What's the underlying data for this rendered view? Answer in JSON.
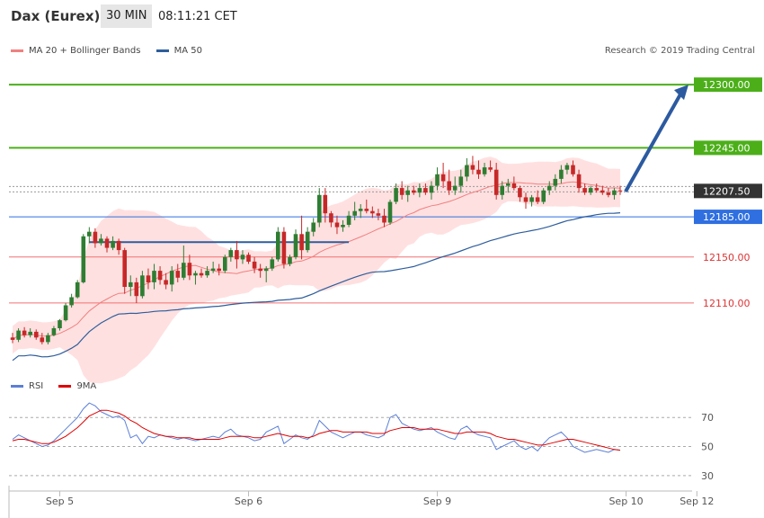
{
  "header": {
    "instrument": "Dax (Eurex)",
    "timeframe": "30 MIN",
    "clock": "08:11:21 CET"
  },
  "legend": {
    "ma20_label": "MA 20 + Bollinger Bands",
    "ma50_label": "MA 50",
    "rsi_label": "RSI",
    "rsi_ma_label": "9MA",
    "credit": "Research © 2019 Trading Central"
  },
  "colors": {
    "ma20": "#f08080",
    "ma50": "#2e5d9c",
    "bollinger_fill": "#ffe0e0",
    "candle_up": "#2e7d32",
    "candle_down": "#c62828",
    "target_green": "#4caf1a",
    "resistance_blue": "#2f6fe0",
    "support_red": "#f07070",
    "current_price": "#333333",
    "arrow": "#2c5aa0",
    "rsi": "#5b7fd6",
    "rsi_ma": "#e00000"
  },
  "chart_data": [
    {
      "type": "candlestick",
      "title": "Dax (Eurex) 30 MIN",
      "ylim": [
        12045,
        12322
      ],
      "x_ticks": [
        "Sep 5",
        "Sep 6",
        "Sep 9",
        "Sep 10",
        "Sep 12"
      ],
      "x_tick_index": [
        8,
        40,
        72,
        104,
        116
      ],
      "levels": [
        {
          "label": "12300.00",
          "value": 12300,
          "kind": "target"
        },
        {
          "label": "12245.00",
          "value": 12245,
          "kind": "target"
        },
        {
          "label": "12207.50",
          "value": 12207.5,
          "kind": "current"
        },
        {
          "label": "12185.00",
          "value": 12185,
          "kind": "resistance"
        },
        {
          "label": "12150.00",
          "value": 12150,
          "kind": "support"
        },
        {
          "label": "12110.00",
          "value": 12110,
          "kind": "support"
        }
      ],
      "horizontal_line": {
        "value": 12163,
        "from_index": 13,
        "to_index": 57
      },
      "projection_arrow": {
        "from_value": 12207,
        "to_value": 12300
      },
      "candles": [
        [
          12080,
          12084,
          12075,
          12078
        ],
        [
          12078,
          12088,
          12076,
          12086
        ],
        [
          12086,
          12089,
          12080,
          12082
        ],
        [
          12082,
          12088,
          12080,
          12085
        ],
        [
          12085,
          12087,
          12078,
          12080
        ],
        [
          12080,
          12084,
          12074,
          12076
        ],
        [
          12076,
          12084,
          12074,
          12082
        ],
        [
          12082,
          12090,
          12081,
          12088
        ],
        [
          12088,
          12096,
          12086,
          12095
        ],
        [
          12095,
          12110,
          12094,
          12108
        ],
        [
          12108,
          12118,
          12106,
          12115
        ],
        [
          12115,
          12130,
          12114,
          12128
        ],
        [
          12128,
          12170,
          12127,
          12168
        ],
        [
          12168,
          12176,
          12162,
          12172
        ],
        [
          12172,
          12175,
          12158,
          12162
        ],
        [
          12162,
          12170,
          12160,
          12166
        ],
        [
          12166,
          12168,
          12154,
          12158
        ],
        [
          12158,
          12168,
          12156,
          12164
        ],
        [
          12164,
          12166,
          12152,
          12156
        ],
        [
          12156,
          12158,
          12118,
          12124
        ],
        [
          12124,
          12134,
          12116,
          12128
        ],
        [
          12128,
          12132,
          12110,
          12116
        ],
        [
          12116,
          12138,
          12114,
          12134
        ],
        [
          12134,
          12140,
          12122,
          12128
        ],
        [
          12128,
          12144,
          12122,
          12138
        ],
        [
          12138,
          12142,
          12126,
          12130
        ],
        [
          12130,
          12136,
          12122,
          12126
        ],
        [
          12126,
          12142,
          12120,
          12138
        ],
        [
          12138,
          12144,
          12128,
          12132
        ],
        [
          12132,
          12160,
          12130,
          12145
        ],
        [
          12145,
          12152,
          12130,
          12134
        ],
        [
          12134,
          12138,
          12126,
          12136
        ],
        [
          12136,
          12140,
          12132,
          12134
        ],
        [
          12134,
          12142,
          12132,
          12138
        ],
        [
          12138,
          12146,
          12136,
          12140
        ],
        [
          12140,
          12144,
          12134,
          12138
        ],
        [
          12138,
          12152,
          12136,
          12150
        ],
        [
          12150,
          12158,
          12146,
          12156
        ],
        [
          12156,
          12164,
          12140,
          12148
        ],
        [
          12148,
          12156,
          12144,
          12152
        ],
        [
          12152,
          12154,
          12144,
          12146
        ],
        [
          12146,
          12150,
          12136,
          12140
        ],
        [
          12140,
          12144,
          12132,
          12138
        ],
        [
          12138,
          12142,
          12128,
          12140
        ],
        [
          12140,
          12150,
          12138,
          12148
        ],
        [
          12148,
          12176,
          12146,
          12172
        ],
        [
          12172,
          12176,
          12140,
          12144
        ],
        [
          12144,
          12152,
          12142,
          12150
        ],
        [
          12150,
          12174,
          12148,
          12170
        ],
        [
          12170,
          12186,
          12148,
          12156
        ],
        [
          12156,
          12176,
          12154,
          12172
        ],
        [
          12172,
          12184,
          12168,
          12180
        ],
        [
          12180,
          12210,
          12176,
          12204
        ],
        [
          12204,
          12210,
          12180,
          12188
        ],
        [
          12188,
          12190,
          12176,
          12180
        ],
        [
          12180,
          12186,
          12170,
          12176
        ],
        [
          12176,
          12182,
          12172,
          12178
        ],
        [
          12178,
          12190,
          12176,
          12186
        ],
        [
          12186,
          12198,
          12182,
          12190
        ],
        [
          12190,
          12196,
          12184,
          12192
        ],
        [
          12192,
          12200,
          12188,
          12190
        ],
        [
          12190,
          12194,
          12184,
          12188
        ],
        [
          12188,
          12192,
          12182,
          12186
        ],
        [
          12186,
          12192,
          12176,
          12180
        ],
        [
          12180,
          12200,
          12178,
          12198
        ],
        [
          12198,
          12214,
          12196,
          12210
        ],
        [
          12210,
          12216,
          12200,
          12204
        ],
        [
          12204,
          12212,
          12198,
          12208
        ],
        [
          12208,
          12212,
          12204,
          12206
        ],
        [
          12206,
          12214,
          12202,
          12210
        ],
        [
          12210,
          12214,
          12204,
          12206
        ],
        [
          12206,
          12216,
          12200,
          12212
        ],
        [
          12212,
          12228,
          12208,
          12222
        ],
        [
          12222,
          12232,
          12210,
          12216
        ],
        [
          12216,
          12226,
          12204,
          12208
        ],
        [
          12208,
          12220,
          12204,
          12212
        ],
        [
          12212,
          12226,
          12206,
          12220
        ],
        [
          12220,
          12236,
          12216,
          12230
        ],
        [
          12230,
          12238,
          12222,
          12226
        ],
        [
          12226,
          12234,
          12218,
          12222
        ],
        [
          12222,
          12232,
          12220,
          12228
        ],
        [
          12228,
          12234,
          12224,
          12226
        ],
        [
          12226,
          12232,
          12200,
          12204
        ],
        [
          12204,
          12216,
          12200,
          12212
        ],
        [
          12212,
          12218,
          12206,
          12214
        ],
        [
          12214,
          12220,
          12208,
          12210
        ],
        [
          12210,
          12212,
          12198,
          12202
        ],
        [
          12202,
          12206,
          12192,
          12198
        ],
        [
          12198,
          12204,
          12194,
          12202
        ],
        [
          12202,
          12208,
          12196,
          12198
        ],
        [
          12198,
          12210,
          12196,
          12208
        ],
        [
          12208,
          12216,
          12204,
          12212
        ],
        [
          12212,
          12222,
          12208,
          12218
        ],
        [
          12218,
          12230,
          12214,
          12226
        ],
        [
          12226,
          12232,
          12222,
          12230
        ],
        [
          12230,
          12234,
          12220,
          12222
        ],
        [
          12222,
          12226,
          12206,
          12210
        ],
        [
          12210,
          12214,
          12204,
          12206
        ],
        [
          12206,
          12212,
          12204,
          12210
        ],
        [
          12210,
          12214,
          12206,
          12208
        ],
        [
          12208,
          12212,
          12204,
          12206
        ],
        [
          12206,
          12210,
          12202,
          12204
        ],
        [
          12204,
          12210,
          12200,
          12208
        ],
        [
          12208,
          12212,
          12204,
          12207.5
        ]
      ],
      "rsi_panel": {
        "ylim": [
          20,
          85
        ],
        "y_ticks": [
          70,
          50,
          30
        ],
        "rsi": [
          55,
          58,
          56,
          54,
          52,
          50,
          51,
          54,
          58,
          62,
          66,
          70,
          76,
          80,
          78,
          74,
          72,
          70,
          71,
          68,
          56,
          58,
          52,
          57,
          56,
          58,
          57,
          56,
          55,
          56,
          55,
          54,
          55,
          56,
          57,
          56,
          60,
          62,
          58,
          57,
          56,
          54,
          55,
          60,
          62,
          64,
          52,
          55,
          58,
          56,
          55,
          58,
          68,
          64,
          60,
          58,
          56,
          58,
          60,
          60,
          58,
          57,
          56,
          58,
          70,
          72,
          66,
          64,
          62,
          61,
          62,
          63,
          60,
          58,
          56,
          55,
          62,
          64,
          60,
          58,
          57,
          56,
          48,
          50,
          52,
          54,
          50,
          48,
          50,
          47,
          52,
          56,
          58,
          60,
          56,
          50,
          48,
          46,
          47,
          48,
          47,
          46,
          48,
          47.5
        ],
        "rsi_ma": [
          54,
          55,
          55,
          54,
          53,
          52,
          52,
          53,
          55,
          57,
          60,
          63,
          67,
          71,
          73,
          75,
          75,
          74,
          73,
          71,
          68,
          66,
          63,
          61,
          59,
          58,
          57,
          57,
          56,
          56,
          56,
          55,
          55,
          55,
          55,
          55,
          56,
          57,
          57,
          57,
          57,
          56,
          56,
          57,
          58,
          59,
          58,
          57,
          57,
          57,
          56,
          57,
          59,
          60,
          61,
          61,
          60,
          60,
          60,
          60,
          60,
          59,
          59,
          59,
          61,
          62,
          63,
          63,
          63,
          62,
          62,
          62,
          62,
          61,
          60,
          59,
          59,
          60,
          60,
          60,
          60,
          59,
          57,
          56,
          55,
          55,
          54,
          53,
          52,
          51,
          51,
          52,
          53,
          54,
          55,
          55,
          54,
          53,
          52,
          51,
          50,
          49,
          48,
          47.5
        ]
      }
    }
  ]
}
